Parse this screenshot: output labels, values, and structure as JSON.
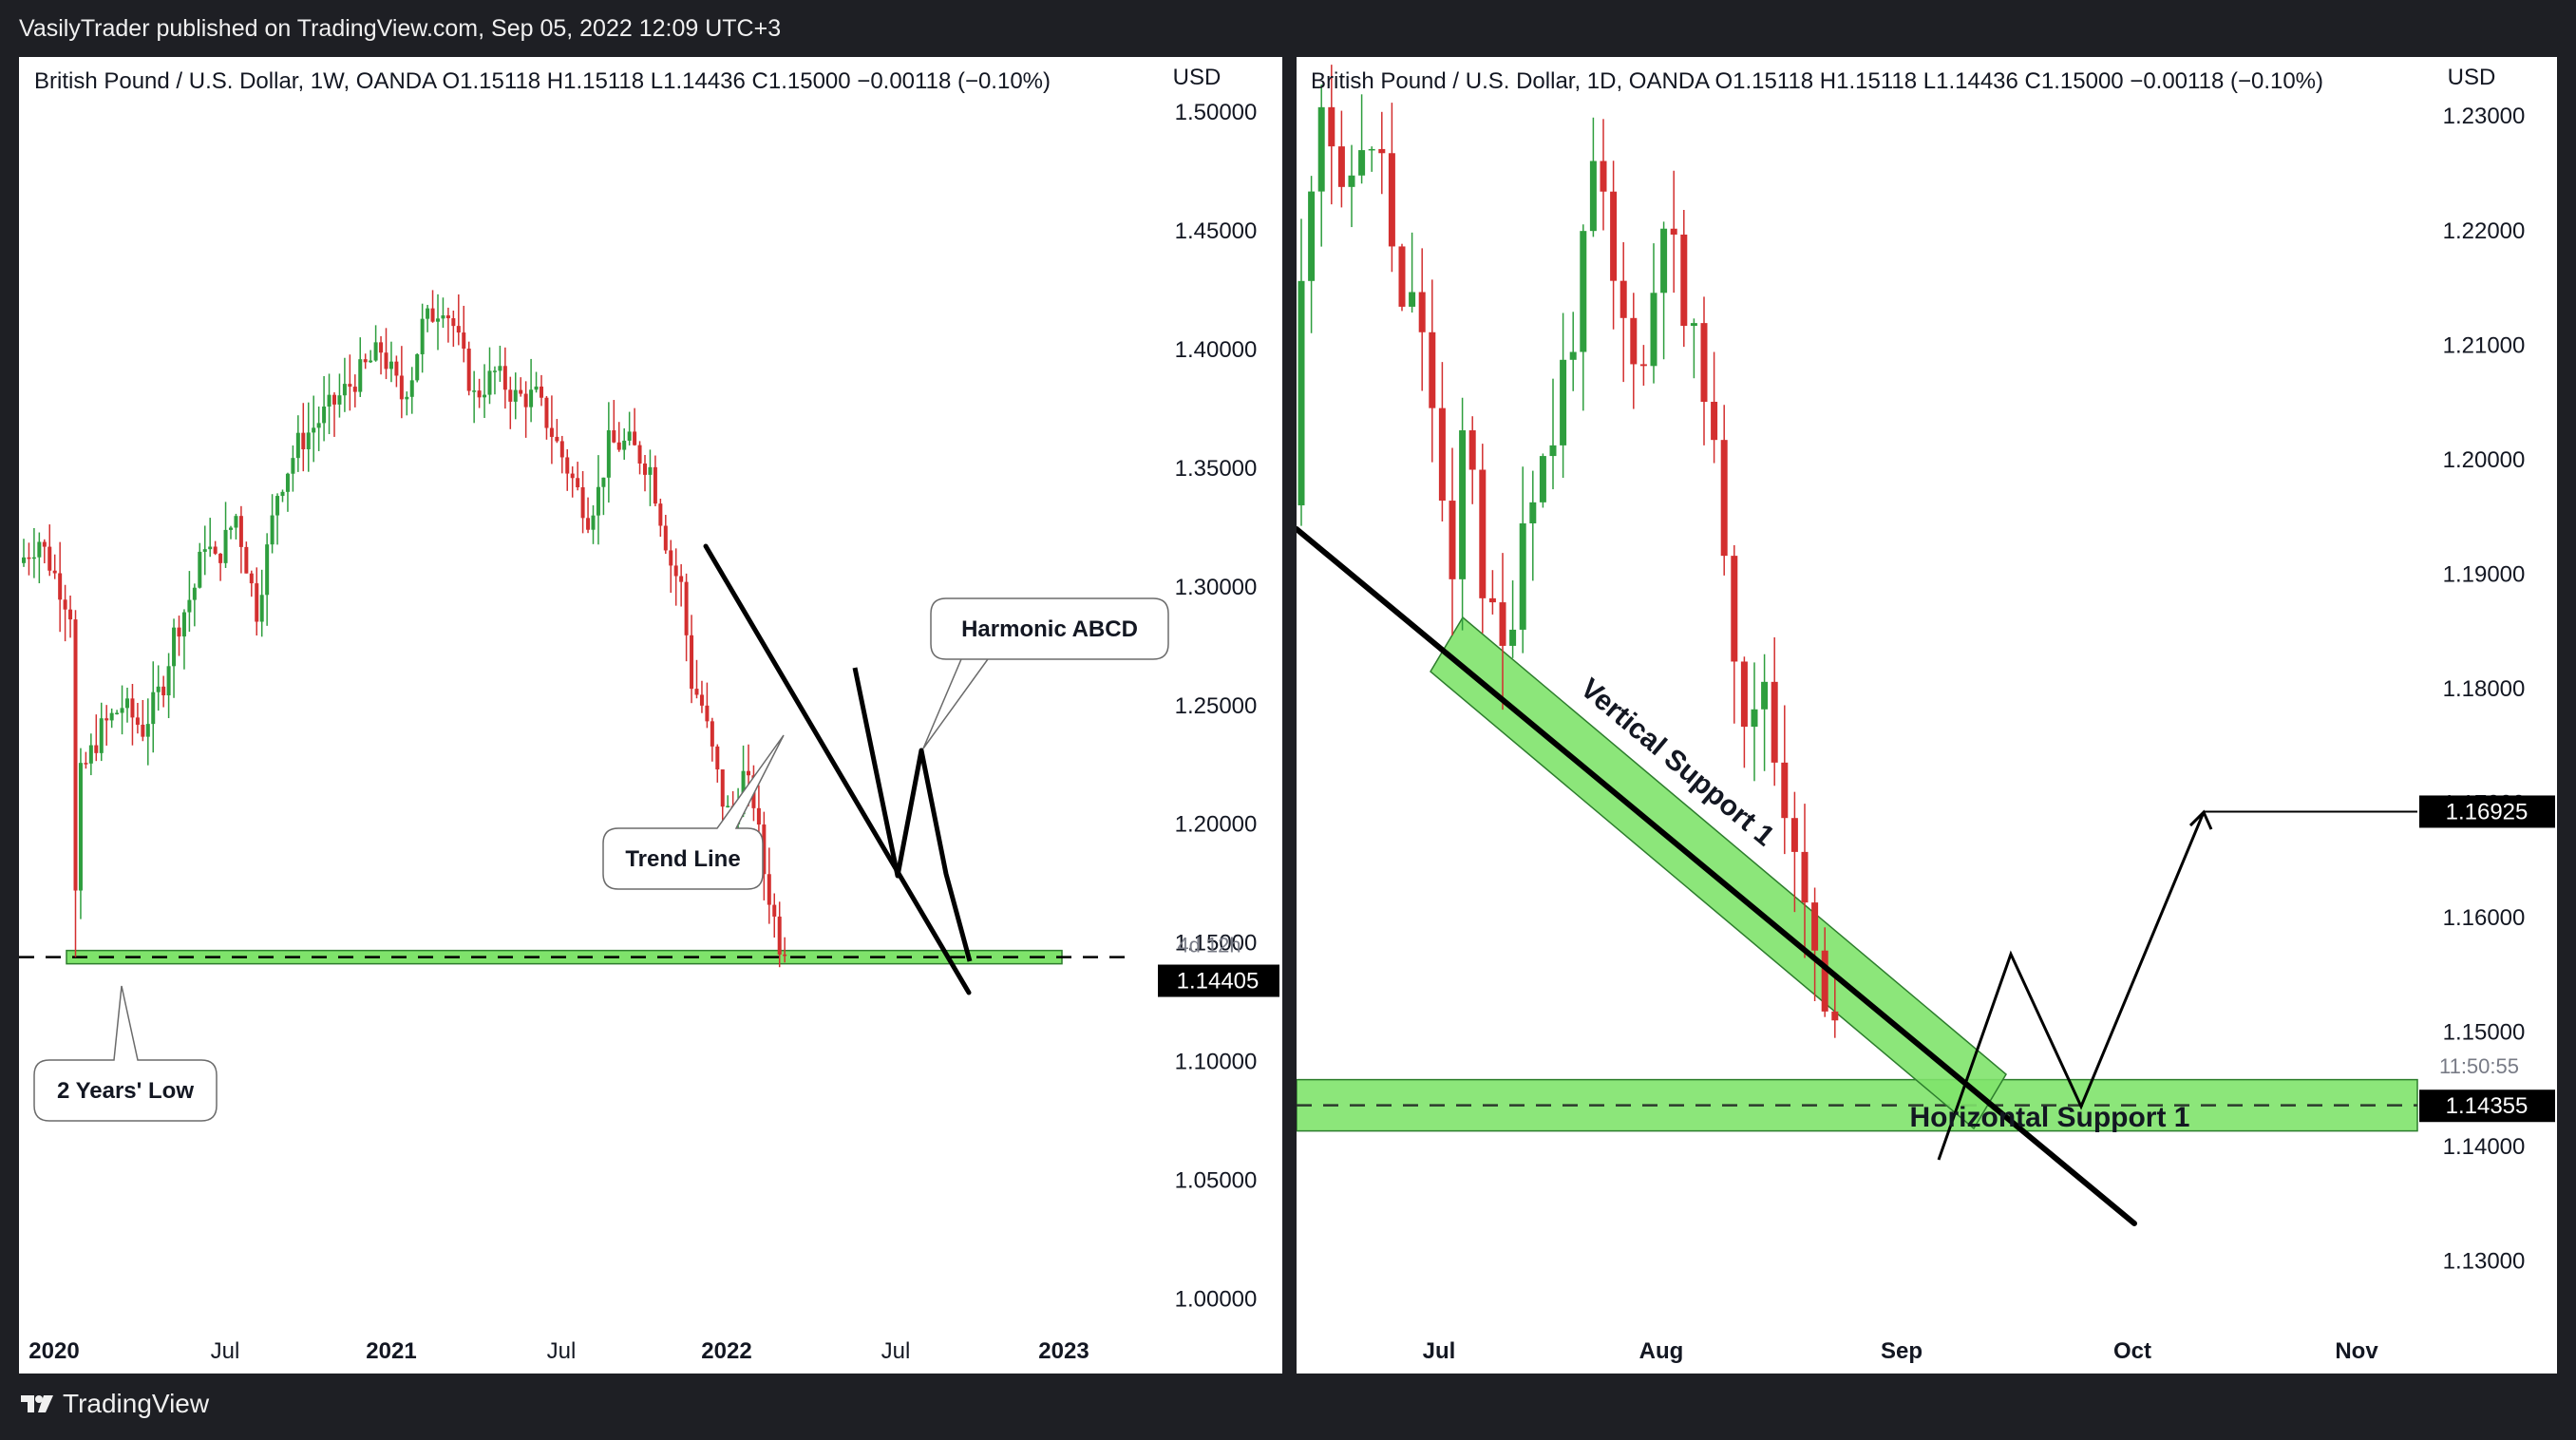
{
  "header": {
    "publish_text": "VasilyTrader published on TradingView.com, Sep 05, 2022 12:09 UTC+3"
  },
  "footer": {
    "brand": "TradingView"
  },
  "colors": {
    "bull": "#26a69a",
    "bull_fill": "#2e9e3e",
    "bear": "#d32f2f",
    "zone": "#7fe36b",
    "line": "#000000"
  },
  "left_chart": {
    "legend": "British Pound / U.S. Dollar, 1W, OANDA  O1.15118  H1.15118  L1.14436  C1.15000  −0.00118 (−0.10%)",
    "currency": "USD",
    "price_label": "1.14405",
    "countdown": "4d 12h",
    "annotations": {
      "harmonic": "Harmonic ABCD",
      "trend_line": "Trend Line",
      "two_years_low": "2 Years' Low"
    }
  },
  "right_chart": {
    "legend": "British Pound / U.S. Dollar, 1D, OANDA  O1.15118  H1.15118  L1.14436  C1.15000  −0.00118 (−0.10%)",
    "currency": "USD",
    "price_label": "1.14355",
    "target_label": "1.16925",
    "countdown": "11:50:55",
    "annotations": {
      "vertical_support": "Vertical Support 1",
      "horizontal_support": "Horizontal Support 1"
    }
  },
  "chart_data": [
    {
      "type": "candlestick",
      "title": "British Pound / U.S. Dollar, 1W, OANDA",
      "ylim": [
        0.975,
        1.52
      ],
      "y_ticks": [
        "1.00000",
        "1.05000",
        "1.10000",
        "1.15000",
        "1.20000",
        "1.25000",
        "1.30000",
        "1.35000",
        "1.40000",
        "1.45000",
        "1.50000"
      ],
      "x_ticks": [
        {
          "label": "2020",
          "bold": true
        },
        {
          "label": "Jul",
          "bold": false
        },
        {
          "label": "2021",
          "bold": true
        },
        {
          "label": "Jul",
          "bold": false
        },
        {
          "label": "2022",
          "bold": true
        },
        {
          "label": "Jul",
          "bold": false
        },
        {
          "label": "2023",
          "bold": true
        }
      ],
      "ohlc_path": [
        [
          0,
          1.31
        ],
        [
          4,
          1.32
        ],
        [
          8,
          1.3
        ],
        [
          10,
          1.29
        ],
        [
          11,
          1.17
        ],
        [
          12,
          1.22
        ],
        [
          16,
          1.24
        ],
        [
          20,
          1.25
        ],
        [
          24,
          1.24
        ],
        [
          28,
          1.26
        ],
        [
          30,
          1.28
        ],
        [
          34,
          1.3
        ],
        [
          36,
          1.32
        ],
        [
          38,
          1.31
        ],
        [
          42,
          1.33
        ],
        [
          46,
          1.29
        ],
        [
          50,
          1.34
        ],
        [
          54,
          1.36
        ],
        [
          58,
          1.37
        ],
        [
          62,
          1.38
        ],
        [
          66,
          1.39
        ],
        [
          70,
          1.4
        ],
        [
          74,
          1.38
        ],
        [
          76,
          1.39
        ],
        [
          78,
          1.41
        ],
        [
          82,
          1.42
        ],
        [
          84,
          1.41
        ],
        [
          88,
          1.38
        ],
        [
          92,
          1.39
        ],
        [
          96,
          1.38
        ],
        [
          100,
          1.38
        ],
        [
          104,
          1.36
        ],
        [
          108,
          1.34
        ],
        [
          110,
          1.33
        ],
        [
          112,
          1.34
        ],
        [
          114,
          1.36
        ],
        [
          118,
          1.36
        ],
        [
          122,
          1.35
        ],
        [
          126,
          1.31
        ],
        [
          128,
          1.3
        ],
        [
          130,
          1.26
        ],
        [
          132,
          1.25
        ],
        [
          134,
          1.23
        ],
        [
          136,
          1.21
        ],
        [
          138,
          1.2
        ],
        [
          140,
          1.22
        ],
        [
          142,
          1.21
        ],
        [
          144,
          1.18
        ],
        [
          146,
          1.16
        ],
        [
          147,
          1.15
        ]
      ],
      "support_level": 1.144,
      "last_price": 1.14405
    },
    {
      "type": "candlestick",
      "title": "British Pound / U.S. Dollar, 1D, OANDA",
      "ylim": [
        1.1215,
        1.2345
      ],
      "y_ticks": [
        "1.13000",
        "1.14000",
        "1.15000",
        "1.16000",
        "1.17000",
        "1.18000",
        "1.19000",
        "1.20000",
        "1.21000",
        "1.22000",
        "1.23000"
      ],
      "x_ticks": [
        {
          "label": "Jul",
          "bold": true
        },
        {
          "label": "Aug",
          "bold": true
        },
        {
          "label": "Sep",
          "bold": true
        },
        {
          "label": "Oct",
          "bold": true
        },
        {
          "label": "Nov",
          "bold": true
        }
      ],
      "ohlc_path": [
        [
          0,
          1.196
        ],
        [
          1,
          1.215
        ],
        [
          2,
          1.225
        ],
        [
          3,
          1.232
        ],
        [
          4,
          1.228
        ],
        [
          5,
          1.222
        ],
        [
          6,
          1.225
        ],
        [
          7,
          1.228
        ],
        [
          8,
          1.226
        ],
        [
          9,
          1.227
        ],
        [
          10,
          1.218
        ],
        [
          11,
          1.212
        ],
        [
          12,
          1.215
        ],
        [
          13,
          1.21
        ],
        [
          14,
          1.205
        ],
        [
          15,
          1.196
        ],
        [
          16,
          1.188
        ],
        [
          17,
          1.202
        ],
        [
          18,
          1.2
        ],
        [
          19,
          1.189
        ],
        [
          20,
          1.186
        ],
        [
          21,
          1.183
        ],
        [
          22,
          1.187
        ],
        [
          23,
          1.195
        ],
        [
          24,
          1.198
        ],
        [
          25,
          1.2
        ],
        [
          26,
          1.202
        ],
        [
          27,
          1.208
        ],
        [
          28,
          1.211
        ],
        [
          29,
          1.218
        ],
        [
          30,
          1.225
        ],
        [
          31,
          1.222
        ],
        [
          32,
          1.215
        ],
        [
          33,
          1.212
        ],
        [
          34,
          1.21
        ],
        [
          35,
          1.208
        ],
        [
          36,
          1.215
        ],
        [
          37,
          1.222
        ],
        [
          38,
          1.218
        ],
        [
          39,
          1.212
        ],
        [
          40,
          1.21
        ],
        [
          41,
          1.207
        ],
        [
          42,
          1.2
        ],
        [
          43,
          1.193
        ],
        [
          44,
          1.184
        ],
        [
          45,
          1.178
        ],
        [
          46,
          1.177
        ],
        [
          47,
          1.181
        ],
        [
          48,
          1.174
        ],
        [
          49,
          1.17
        ],
        [
          50,
          1.167
        ],
        [
          51,
          1.16
        ],
        [
          52,
          1.157
        ],
        [
          53,
          1.151
        ],
        [
          54,
          1.15
        ]
      ],
      "horizontal_support": 1.1436,
      "last_price": 1.14355,
      "projection": [
        1.1405,
        1.1568,
        1.1435,
        1.1692
      ],
      "target_price": 1.16925
    }
  ]
}
